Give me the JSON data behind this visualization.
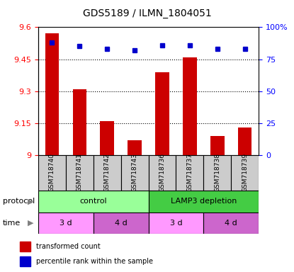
{
  "title": "GDS5189 / ILMN_1804051",
  "samples": [
    "GSM718740",
    "GSM718741",
    "GSM718742",
    "GSM718743",
    "GSM718736",
    "GSM718737",
    "GSM718738",
    "GSM718739"
  ],
  "red_values": [
    9.57,
    9.31,
    9.16,
    9.07,
    9.39,
    9.46,
    9.09,
    9.13
  ],
  "blue_values": [
    88,
    85,
    83,
    82,
    86,
    86,
    83,
    83
  ],
  "ymin": 9.0,
  "ymax": 9.6,
  "yticks": [
    9.0,
    9.15,
    9.3,
    9.45,
    9.6
  ],
  "ytick_labels": [
    "9",
    "9.15",
    "9.3",
    "9.45",
    "9.6"
  ],
  "right_yticks": [
    0,
    25,
    50,
    75,
    100
  ],
  "right_ytick_labels": [
    "0",
    "25",
    "50",
    "75",
    "100%"
  ],
  "bar_color": "#cc0000",
  "dot_color": "#0000cc",
  "protocol_control_color": "#99ff99",
  "protocol_lamp3_color": "#44cc44",
  "time_3d_color": "#ff99ff",
  "time_4d_color": "#cc66cc",
  "protocol_labels": [
    "control",
    "LAMP3 depletion"
  ],
  "time_labels": [
    "3 d",
    "4 d",
    "3 d",
    "4 d"
  ],
  "legend_red": "transformed count",
  "legend_blue": "percentile rank within the sample",
  "grid_color": "#000000",
  "background_color": "#ffffff",
  "sample_bg_color": "#cccccc"
}
